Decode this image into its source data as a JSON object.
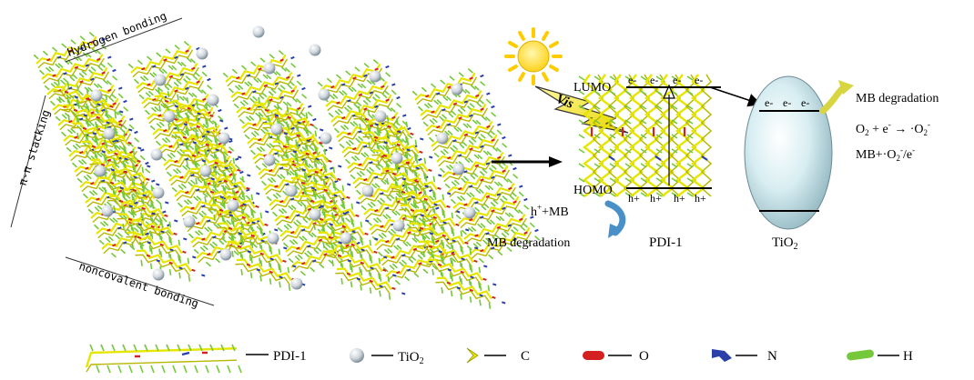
{
  "lattice": {
    "top_label": "Hydrogen bonding",
    "left_label": "π-π stacking",
    "bottom_label": "noncovalent bonding"
  },
  "mechanism": {
    "lumo": "LUMO",
    "homo": "HOMO",
    "electron": "e-",
    "hole": "h+",
    "vis": "Vis",
    "left_reaction_prefix": "h",
    "left_reaction_sup": "+",
    "left_reaction_suffix": "+MB",
    "left_product": "MB degradation",
    "right_product": "MB degradation",
    "eq1_a": "O",
    "eq1_a_sub": "2",
    "eq1_b": " + e",
    "eq1_b_sup": "-",
    "eq1_arrow": " → ·O",
    "eq1_c_sub": "2",
    "eq1_c_sup": "-",
    "eq2_a": "MB+·O",
    "eq2_a_sub": "2",
    "eq2_a_sup": "-",
    "eq2_b": "/e",
    "eq2_b_sup": "-",
    "pdi_label": "PDI-1",
    "tio2_label_main": "TiO",
    "tio2_label_sub": "2"
  },
  "legend": {
    "pdi": "PDI-1",
    "tio2_main": "TiO",
    "tio2_sub": "2",
    "c": "C",
    "o": "O",
    "n": "N",
    "h": "H"
  },
  "colors": {
    "carbon": "#e6e600",
    "oxygen": "#d42020",
    "nitrogen": "#2a3fa8",
    "hydrogen": "#74c83a",
    "sun": "#ffe14a",
    "tio2": "#bfe4ea",
    "arrow_blue": "#4a90c8",
    "arrow_yellow": "#d7d640"
  }
}
